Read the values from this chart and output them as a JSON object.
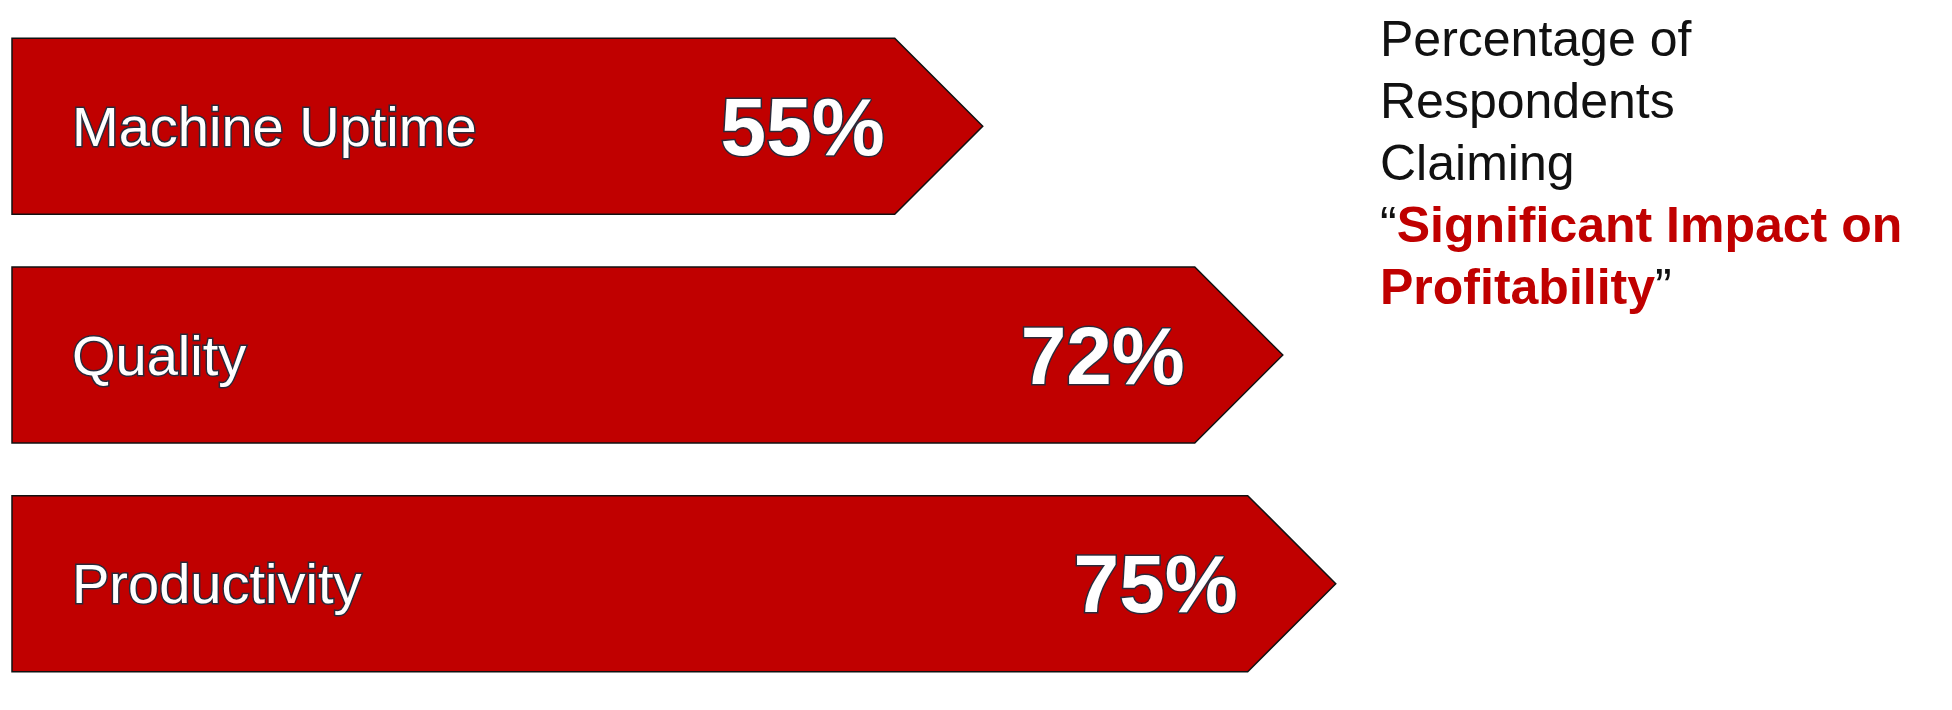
{
  "chart_data": {
    "type": "bar",
    "orientation": "horizontal",
    "title": "Percentage of Respondents Claiming",
    "subtitle": "“Significant Impact on Profitability”",
    "categories": [
      "Machine Uptime",
      "Quality",
      "Productivity"
    ],
    "values": [
      55,
      72,
      75
    ],
    "value_labels": [
      "55%",
      "72%",
      "75%"
    ],
    "color": "#c00000"
  }
}
